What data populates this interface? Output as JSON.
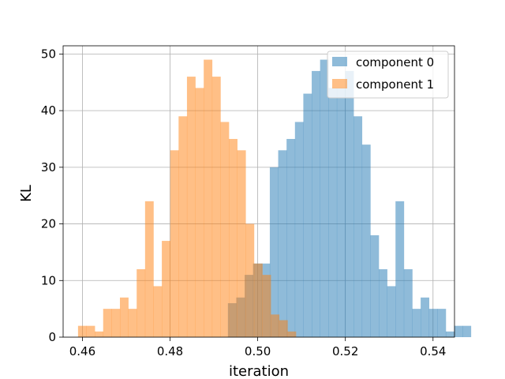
{
  "chart_data": {
    "type": "histogram",
    "title": "",
    "xlabel": "iteration",
    "ylabel": "KL",
    "xlim": [
      0.4556,
      0.5449
    ],
    "ylim": [
      0,
      51.45
    ],
    "x_ticks": [
      0.46,
      0.48,
      0.5,
      0.52,
      0.54
    ],
    "x_tick_labels": [
      "0.46",
      "0.48",
      "0.50",
      "0.52",
      "0.54"
    ],
    "y_ticks": [
      0,
      10,
      20,
      30,
      40,
      50
    ],
    "y_tick_labels": [
      "0",
      "10",
      "20",
      "30",
      "40",
      "50"
    ],
    "grid": true,
    "legend_position": "top-right",
    "series": [
      {
        "name": "component 0",
        "color": "#1f77b4",
        "alpha": 0.5,
        "bin_start": 0.4932,
        "bin_width": 0.001912,
        "counts": [
          6,
          7,
          11,
          13,
          13,
          30,
          33,
          35,
          38,
          43,
          47,
          49,
          44,
          44,
          47,
          39,
          34,
          18,
          12,
          9,
          24,
          12,
          5,
          7,
          5,
          5,
          1,
          2,
          2
        ]
      },
      {
        "name": "component 1",
        "color": "#ff7f0e",
        "alpha": 0.5,
        "bin_start": 0.459,
        "bin_width": 0.001912,
        "counts": [
          2,
          2,
          1,
          5,
          5,
          7,
          5,
          12,
          24,
          9,
          17,
          33,
          39,
          46,
          44,
          49,
          46,
          38,
          35,
          33,
          20,
          13,
          11,
          4,
          3,
          1
        ]
      }
    ]
  }
}
